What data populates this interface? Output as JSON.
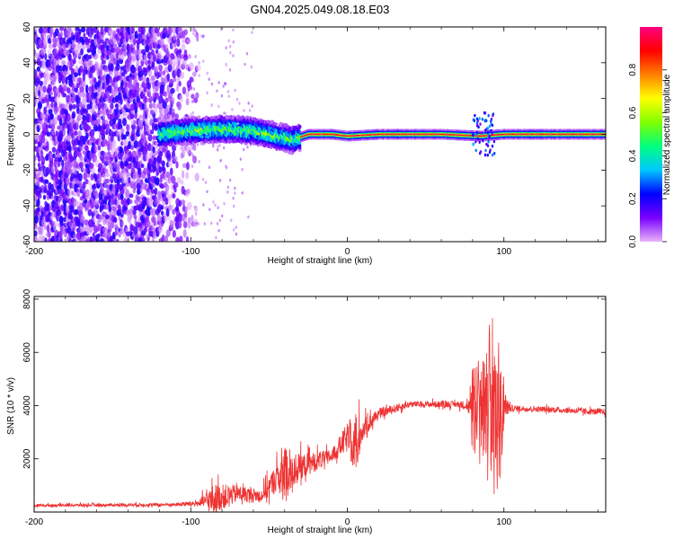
{
  "figure_title": "GN04.2025.049.08.18.E03",
  "chart_data": [
    {
      "type": "heatmap",
      "xlabel": "Height of straight line (km)",
      "ylabel": "Frequency (Hz)",
      "xlim": [
        -200,
        165
      ],
      "ylim": [
        -60,
        60
      ],
      "xticks": [
        -200,
        -100,
        0,
        100
      ],
      "yticks": [
        -60,
        -40,
        -20,
        0,
        20,
        40,
        60
      ],
      "grid": false,
      "colorbar": {
        "label": "Normalized spectral amplitude",
        "range": [
          0.0,
          1.0
        ],
        "ticks": [
          0.0,
          0.2,
          0.4,
          0.6,
          0.8
        ],
        "colors": [
          "#e8b4f8",
          "#7a00ff",
          "#0000ff",
          "#00c8ff",
          "#00ff80",
          "#80ff00",
          "#ffff00",
          "#ff8000",
          "#ff0000",
          "#ff0080"
        ]
      },
      "regions": [
        {
          "x_range": [
            -200,
            -100
          ],
          "y_range": [
            -60,
            60
          ],
          "amplitude_range": [
            0.0,
            0.2
          ]
        },
        {
          "x_range": [
            -120,
            -30
          ],
          "y_range": [
            -5,
            8
          ],
          "amplitude_range": [
            0.2,
            0.6
          ]
        },
        {
          "x_range": [
            -30,
            165
          ],
          "y_range": [
            -2,
            2
          ],
          "amplitude_range": [
            0.6,
            1.0
          ]
        }
      ],
      "center_frequency": [
        {
          "x": -118,
          "y": 0.5
        },
        {
          "x": -100,
          "y": 2
        },
        {
          "x": -80,
          "y": 3
        },
        {
          "x": -60,
          "y": 2
        },
        {
          "x": -45,
          "y": -1
        },
        {
          "x": -35,
          "y": -3
        },
        {
          "x": -25,
          "y": 0
        },
        {
          "x": -10,
          "y": 0
        },
        {
          "x": 0,
          "y": -1
        },
        {
          "x": 20,
          "y": 0
        },
        {
          "x": 60,
          "y": 0
        },
        {
          "x": 85,
          "y": -1
        },
        {
          "x": 100,
          "y": 0
        },
        {
          "x": 165,
          "y": 0
        }
      ]
    },
    {
      "type": "line",
      "xlabel": "Height of straight line (km)",
      "ylabel": "SNR (10 * v/v)",
      "xlim": [
        -200,
        165
      ],
      "ylim": [
        0,
        8100
      ],
      "xticks": [
        -200,
        -100,
        0,
        100
      ],
      "yticks": [
        2000,
        4000,
        6000,
        8000
      ],
      "grid": false,
      "series": [
        {
          "color": "#ee3333",
          "envelope": [
            {
              "x": -200,
              "mean": 250,
              "amp": 60
            },
            {
              "x": -110,
              "mean": 280,
              "amp": 80
            },
            {
              "x": -95,
              "mean": 330,
              "amp": 150
            },
            {
              "x": -85,
              "mean": 500,
              "amp": 700
            },
            {
              "x": -70,
              "mean": 700,
              "amp": 400
            },
            {
              "x": -55,
              "mean": 600,
              "amp": 300
            },
            {
              "x": -45,
              "mean": 1300,
              "amp": 700
            },
            {
              "x": -40,
              "mean": 1500,
              "amp": 1400
            },
            {
              "x": -30,
              "mean": 1700,
              "amp": 600
            },
            {
              "x": -10,
              "mean": 2100,
              "amp": 300
            },
            {
              "x": 0,
              "mean": 2800,
              "amp": 700
            },
            {
              "x": 5,
              "mean": 2600,
              "amp": 1400
            },
            {
              "x": 10,
              "mean": 3100,
              "amp": 500
            },
            {
              "x": 20,
              "mean": 3700,
              "amp": 250
            },
            {
              "x": 40,
              "mean": 4050,
              "amp": 150
            },
            {
              "x": 70,
              "mean": 4050,
              "amp": 150
            },
            {
              "x": 78,
              "mean": 4000,
              "amp": 250
            },
            {
              "x": 80,
              "mean": 4000,
              "amp": 2000
            },
            {
              "x": 88,
              "mean": 4000,
              "amp": 2600
            },
            {
              "x": 92,
              "mean": 4000,
              "amp": 3800
            },
            {
              "x": 98,
              "mean": 4000,
              "amp": 3000
            },
            {
              "x": 101,
              "mean": 4000,
              "amp": 600
            },
            {
              "x": 105,
              "mean": 3900,
              "amp": 150
            },
            {
              "x": 130,
              "mean": 3850,
              "amp": 130
            },
            {
              "x": 165,
              "mean": 3750,
              "amp": 150
            }
          ]
        }
      ]
    }
  ]
}
